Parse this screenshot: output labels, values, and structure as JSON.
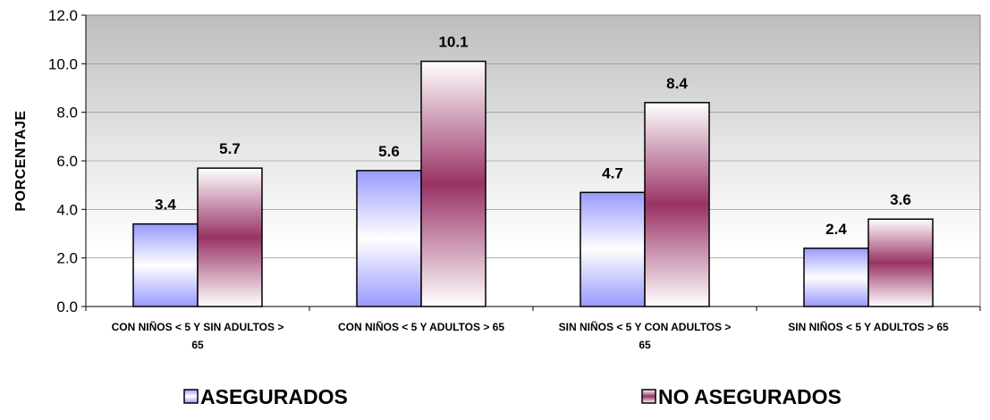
{
  "chart_data": {
    "type": "bar",
    "title": "",
    "xlabel": "",
    "ylabel": "PORCENTAJE",
    "ylim": [
      0,
      12
    ],
    "yticks": [
      "0.0",
      "2.0",
      "4.0",
      "6.0",
      "8.0",
      "10.0",
      "12.0"
    ],
    "grid": true,
    "legend_position": "bottom",
    "categories": [
      [
        "CON NIÑOS < 5 Y SIN ADULTOS >",
        "65"
      ],
      [
        "CON NIÑOS < 5 Y ADULTOS > 65"
      ],
      [
        "SIN NIÑOS < 5 Y CON ADULTOS >",
        "65"
      ],
      [
        "SIN NIÑOS < 5 Y ADULTOS > 65"
      ]
    ],
    "series": [
      {
        "name": "ASEGURADOS",
        "values": [
          3.4,
          5.6,
          4.7,
          2.4
        ],
        "labels": [
          "3.4",
          "5.6",
          "4.7",
          "2.4"
        ],
        "color": "#9999ff"
      },
      {
        "name": "NO ASEGURADOS",
        "values": [
          5.7,
          10.1,
          8.4,
          3.6
        ],
        "labels": [
          "5.7",
          "10.1",
          "8.4",
          "3.6"
        ],
        "color": "#993366"
      }
    ],
    "plot_background": "#c0c0c0"
  }
}
